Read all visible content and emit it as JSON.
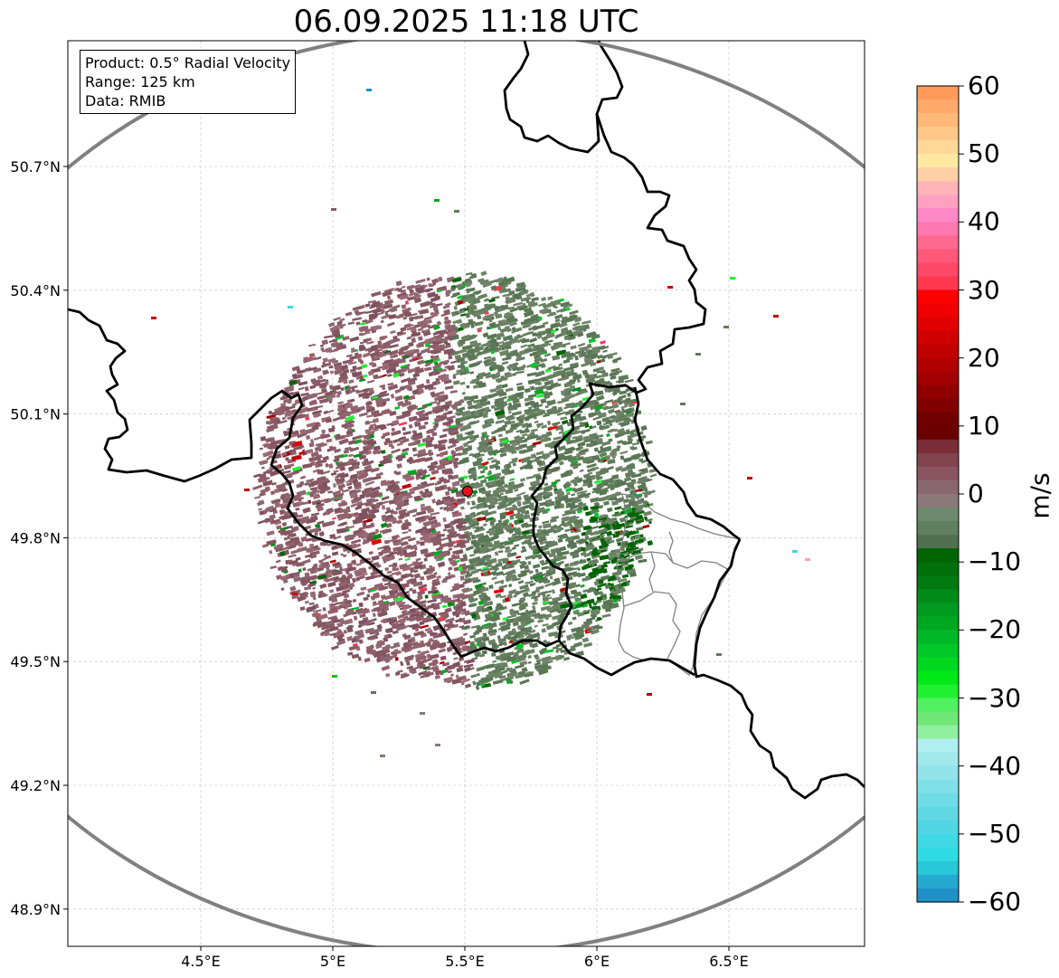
{
  "title": "06.09.2025 11:18 UTC",
  "info_box": {
    "product": "Product: 0.5° Radial Velocity",
    "range": "Range: 125 km",
    "data": "Data: RMIB"
  },
  "axes": {
    "lon_ticks": [
      "4.5°E",
      "5°E",
      "5.5°E",
      "6°E",
      "6.5°E"
    ],
    "lat_ticks": [
      "50.7°N",
      "50.4°N",
      "50.1°N",
      "49.8°N",
      "49.5°N",
      "49.2°N",
      "48.9°N"
    ]
  },
  "radar_site": {
    "lon": 5.505,
    "lat": 49.914,
    "color": "#e8101a"
  },
  "colorbar": {
    "unit": "m/s",
    "ticks": [
      "60",
      "50",
      "40",
      "30",
      "20",
      "10",
      "0",
      "−10",
      "−20",
      "−30",
      "−40",
      "−50",
      "−60"
    ],
    "range": [
      -60,
      60
    ],
    "colors_top_to_bottom": [
      "#ff9a5a",
      "#ffa96a",
      "#ffb878",
      "#ffc888",
      "#ffd898",
      "#ffe8a0",
      "#ffd0a8",
      "#ffb4b8",
      "#ffa0c0",
      "#ff88c8",
      "#ff78b0",
      "#ff6890",
      "#ff5878",
      "#ff4868",
      "#ff3850",
      "#ff0000",
      "#f00000",
      "#e00000",
      "#d00000",
      "#c00000",
      "#b00000",
      "#a00000",
      "#900000",
      "#800000",
      "#700000",
      "#6a0000",
      "#7a2d37",
      "#824550",
      "#8a5560",
      "#8a6670",
      "#8b7878",
      "#6e8a6e",
      "#5f7f5f",
      "#507050",
      "#006400",
      "#00700a",
      "#007a10",
      "#008a18",
      "#009a20",
      "#00a820",
      "#00b828",
      "#00c828",
      "#00d820",
      "#00e818",
      "#20f030",
      "#50f060",
      "#70e878",
      "#90f0a0",
      "#b0eef0",
      "#a0e8ec",
      "#90e4ea",
      "#80e0e8",
      "#70dce6",
      "#60d8e4",
      "#50d6e4",
      "#40d8e4",
      "#30dce4",
      "#28c8d8",
      "#24aad0",
      "#2090c8"
    ]
  },
  "colors": {
    "inbound_main": "#5e7a5a",
    "outbound_main": "#8a5a66",
    "range_ring": "#808080",
    "border": "#000000",
    "admin_border": "#808080"
  }
}
